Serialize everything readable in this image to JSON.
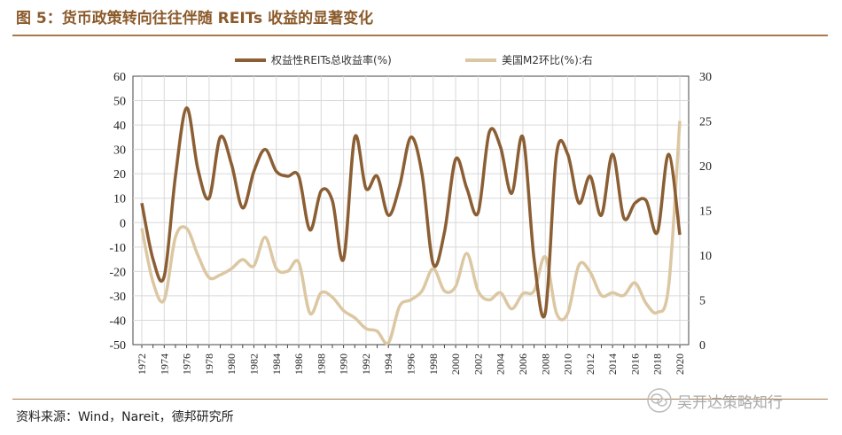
{
  "title": "图 5：货币政策转向往往伴随 REITs 收益的显著变化",
  "source": "资料来源：Wind，Nareit，德邦研究所",
  "watermark": "吴开达策略知行",
  "chart_data": {
    "type": "line",
    "title": "",
    "x": [
      1972,
      1973,
      1974,
      1975,
      1976,
      1977,
      1978,
      1979,
      1980,
      1981,
      1982,
      1983,
      1984,
      1985,
      1986,
      1987,
      1988,
      1989,
      1990,
      1991,
      1992,
      1993,
      1994,
      1995,
      1996,
      1997,
      1998,
      1999,
      2000,
      2001,
      2002,
      2003,
      2004,
      2005,
      2006,
      2007,
      2008,
      2009,
      2010,
      2011,
      2012,
      2013,
      2014,
      2015,
      2016,
      2017,
      2018,
      2019,
      2020
    ],
    "xticks": [
      1972,
      1974,
      1976,
      1978,
      1980,
      1982,
      1984,
      1986,
      1988,
      1990,
      1992,
      1994,
      1996,
      1998,
      2000,
      2002,
      2004,
      2006,
      2008,
      2010,
      2012,
      2014,
      2016,
      2018,
      2020
    ],
    "series": [
      {
        "name": "权益性REITs总收益率(%)",
        "axis": "left",
        "color": "#8b5e34",
        "values": [
          8,
          -15,
          -22,
          19,
          47,
          22,
          10,
          35,
          24,
          6,
          21,
          30,
          21,
          19,
          19,
          -3,
          13,
          9,
          -15,
          35,
          14,
          19,
          3,
          15,
          35,
          20,
          -17,
          -4,
          26,
          14,
          4,
          37,
          31,
          12,
          35,
          -15,
          -37,
          28,
          28,
          8,
          19,
          3,
          28,
          2,
          8,
          9,
          -4,
          28,
          -5
        ]
      },
      {
        "name": "美国M2环比(%):右",
        "axis": "right",
        "color": "#dcc7a3",
        "values": [
          13,
          7,
          5,
          12,
          13,
          10,
          7.5,
          7.8,
          8.5,
          9.5,
          8.8,
          12,
          8.5,
          8.2,
          9.2,
          3.5,
          5.8,
          5.3,
          3.8,
          3,
          1.8,
          1.5,
          0.2,
          4.3,
          5,
          6,
          8.5,
          6,
          6.5,
          10.2,
          6,
          5,
          5.8,
          4,
          5.7,
          6,
          9.8,
          3.5,
          3.5,
          8.9,
          8.1,
          5.5,
          5.8,
          5.5,
          6.9,
          4.6,
          3.6,
          6.5,
          25
        ]
      }
    ],
    "ylim_left": [
      -50,
      60
    ],
    "yticks_left": [
      -50,
      -40,
      -30,
      -20,
      -10,
      0,
      10,
      20,
      30,
      40,
      50,
      60
    ],
    "ylim_right": [
      0,
      30
    ],
    "yticks_right": [
      0,
      5,
      10,
      15,
      20,
      25,
      30
    ],
    "legend": "top-center",
    "grid": true
  }
}
